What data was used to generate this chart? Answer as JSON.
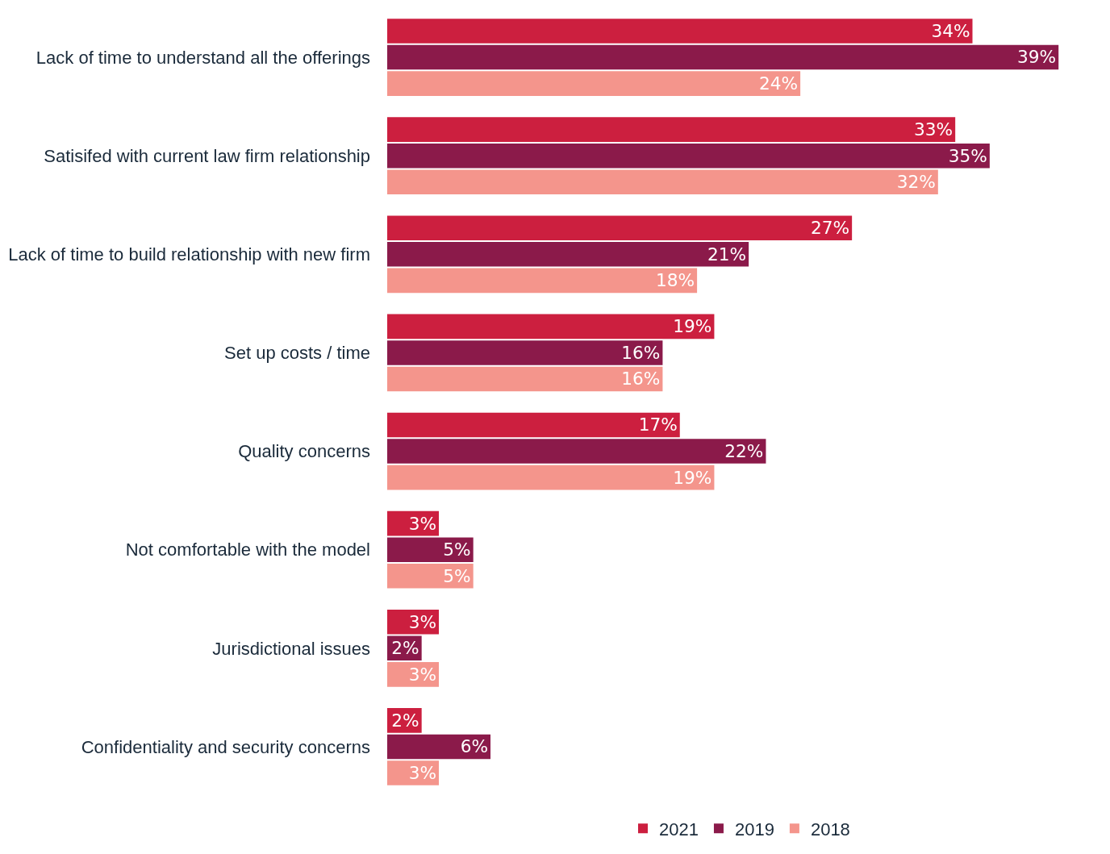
{
  "chart_data": {
    "type": "bar",
    "orientation": "horizontal",
    "categories": [
      "Lack of time to understand all the offerings",
      "Satisifed with current law firm relationship",
      "Lack of time to build relationship with new firm",
      "Set up costs / time",
      "Quality concerns",
      "Not comfortable with the model",
      "Jurisdictional issues",
      "Confidentiality and security concerns"
    ],
    "series": [
      {
        "name": "2021",
        "color": "#cc1f3f",
        "values": [
          34,
          33,
          27,
          19,
          17,
          3,
          3,
          2
        ],
        "value_labels": [
          "34%",
          "33%",
          "27%",
          "19%",
          "17%",
          "3%",
          "3%",
          "2%"
        ]
      },
      {
        "name": "2019",
        "color": "#8b1a4a",
        "values": [
          39,
          35,
          21,
          16,
          22,
          5,
          2,
          6
        ],
        "value_labels": [
          "39%",
          "35%",
          "21%",
          "16%",
          "22%",
          "5%",
          "2%",
          "6%"
        ]
      },
      {
        "name": "2018",
        "color": "#f4958c",
        "values": [
          24,
          32,
          18,
          16,
          19,
          5,
          3,
          3
        ],
        "value_labels": [
          "24%",
          "32%",
          "18%",
          "16%",
          "19%",
          "5%",
          "3%",
          "3%"
        ]
      }
    ],
    "legend": "bottom",
    "tick_labels": "y"
  }
}
